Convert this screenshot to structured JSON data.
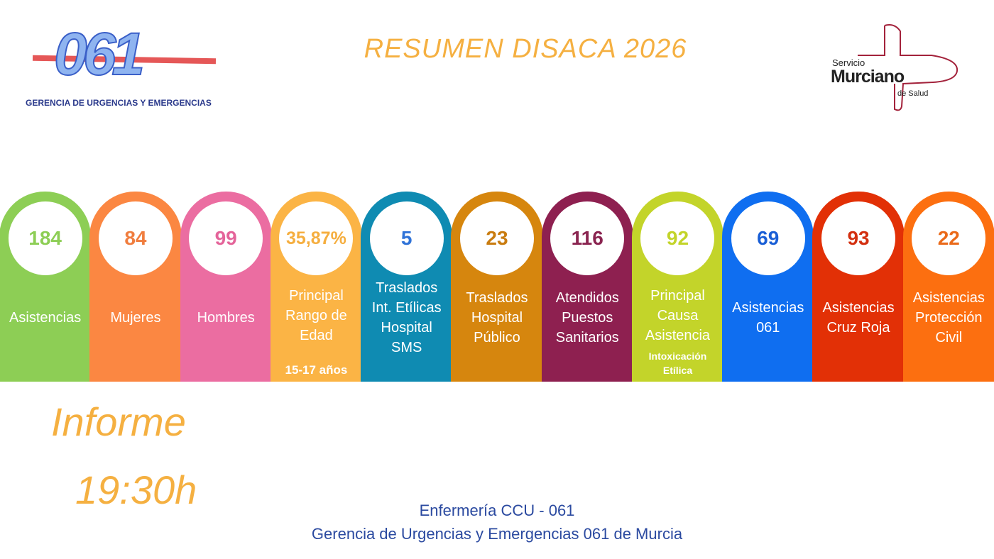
{
  "header": {
    "title": "RESUMEN  DISACA 2026",
    "logo_left_text": "061",
    "logo_left_sub": "GERENCIA DE URGENCIAS Y EMERGENCIAS",
    "logo_right": [
      "Servicio",
      "Murciano",
      "de Salud"
    ]
  },
  "cards": [
    {
      "value": "184",
      "label": "Asistencias",
      "color": "#8dce55",
      "text_color": "#8dce55"
    },
    {
      "value": "84",
      "label": "Mujeres",
      "color": "#fb8742",
      "text_color": "#f07d3e"
    },
    {
      "value": "99",
      "label": "Hombres",
      "color": "#eb6da1",
      "text_color": "#e4649a"
    },
    {
      "value": "35,87%",
      "label": "Principal\nRango de\nEdad",
      "extra": "15-17 años",
      "color": "#fbb445",
      "text_color": "#f5ae3f"
    },
    {
      "value": "5",
      "label": "Traslados\nInt. Etílicas\nHospital\nSMS",
      "color": "#0f8bb2",
      "text_color": "#2f73d8"
    },
    {
      "value": "23",
      "label": "Traslados\nHospital\nPúblico",
      "color": "#d6860e",
      "text_color": "#c97c10"
    },
    {
      "value": "116",
      "label": "Atendidos\nPuestos\nSanitarios",
      "color": "#8e2050",
      "text_color": "#8a2450"
    },
    {
      "value": "92",
      "label": "Principal\nCausa\nAsistencia",
      "extra": "Intoxicación\nEtílica",
      "color": "#c3d42a",
      "text_color": "#c3d42a"
    },
    {
      "value": "69",
      "label": "Asistencias\n061",
      "color": "#0f6ef0",
      "text_color": "#1a5fd6"
    },
    {
      "value": "93",
      "label": "Asistencias\nCruz Roja",
      "color": "#e23006",
      "text_color": "#d33010"
    },
    {
      "value": "22",
      "label": "Asistencias\nProtección\nCivil",
      "color": "#fc6f10",
      "text_color": "#ea6a1a"
    }
  ],
  "report": {
    "label": "Informe",
    "time": "19:30h"
  },
  "footer": {
    "line1": "Enfermería CCU - 061",
    "line2": "Gerencia de Urgencias y Emergencias 061 de Murcia"
  }
}
